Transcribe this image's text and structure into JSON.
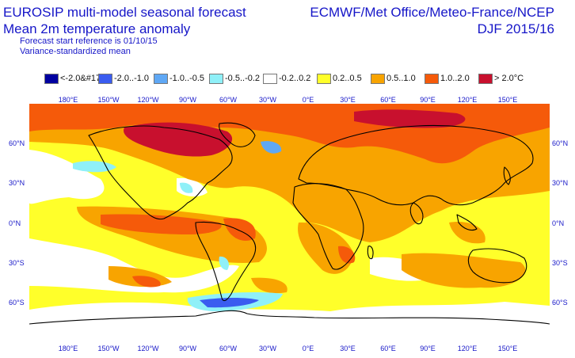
{
  "header": {
    "title": "EUROSIP multi-model seasonal forecast",
    "subtitle": "Mean 2m temperature anomaly",
    "start_reference": "Forecast start reference is 01/10/15",
    "mean_type": "Variance-standardized mean",
    "centres": "ECMWF/Met Office/Meteo-France/NCEP",
    "season": "DJF 2015/16"
  },
  "legend": [
    {
      "label": "<-2.0&#17",
      "color": "#0000a0"
    },
    {
      "label": "-2.0..-1.0",
      "color": "#3a5cf0"
    },
    {
      "label": "-1.0..-0.5",
      "color": "#5fa8f5"
    },
    {
      "label": "-0.5..-0.2",
      "color": "#8ff0f8"
    },
    {
      "label": "-0.2..0.2",
      "color": "#ffffff"
    },
    {
      "label": "0.2..0.5",
      "color": "#ffff2a"
    },
    {
      "label": "0.5..1.0",
      "color": "#f8a400"
    },
    {
      "label": "1.0..2.0",
      "color": "#f55a0a"
    },
    {
      "label": "> 2.0°C",
      "color": "#c8102e"
    }
  ],
  "axes": {
    "lon_labels_top": [
      "180°E",
      "150°W",
      "120°W",
      "90°W",
      "60°W",
      "30°W",
      "0°E",
      "30°E",
      "60°E",
      "90°E",
      "120°E",
      "150°E"
    ],
    "lon_labels_bottom": [
      "180°E",
      "150°W",
      "120°W",
      "90°W",
      "60°W",
      "30°W",
      "0°E",
      "30°E",
      "60°E",
      "90°E",
      "120°E",
      "150°E"
    ],
    "lat_labels_left": [
      "60°N",
      "30°N",
      "0°N",
      "30°S",
      "60°S"
    ],
    "lat_labels_right": [
      "60°N",
      "30°N",
      "0°N",
      "30°S",
      "60°S"
    ]
  }
}
